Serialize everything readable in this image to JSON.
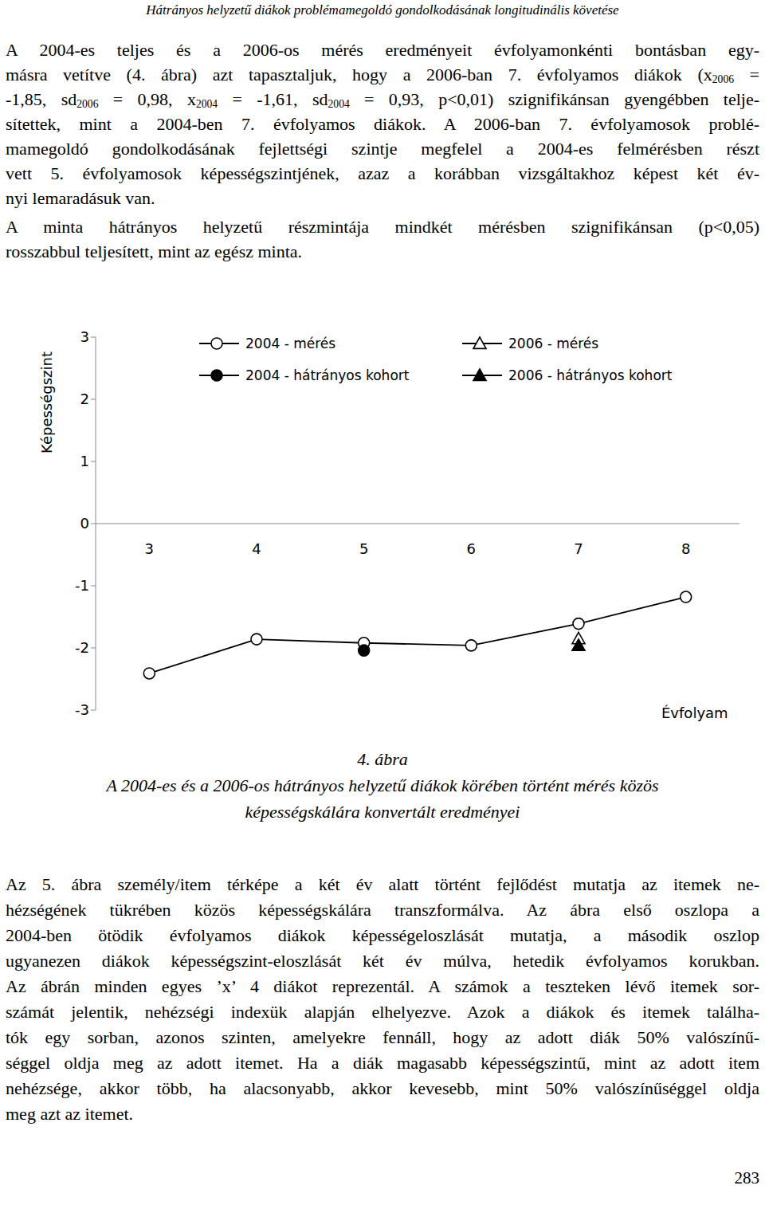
{
  "header": "Hátrányos helyzetű diákok problémamegoldó gondolkodásának longitudinális követése",
  "paragraphs_top": [
    {
      "lines": [
        [
          "A 2004-es teljes és a 2006-os mérés eredményeit évfolyamonkénti bontásban egy-"
        ],
        [
          "másra vetítve (4. ábra) azt tapasztaljuk, hogy a 2006-ban 7. évfolyamos diákok (x",
          {
            "sub": "2006"
          },
          " ="
        ],
        [
          "-1,85, sd",
          {
            "sub": "2006"
          },
          " = 0,98, x",
          {
            "sub": "2004"
          },
          " = -1,61, sd",
          {
            "sub": "2004"
          },
          " = 0,93, p<0,01) szignifikánsan gyengébben telje-"
        ],
        [
          "sítettek, mint a 2004-ben 7. évfolyamos diákok. A 2006-ban 7. évfolyamosok problé-"
        ],
        [
          "mamegoldó gondolkodásának fejlettségi szintje megfelel a 2004-es felmérésben részt"
        ],
        [
          "vett 5. évfolyamosok képességszintjének, azaz a korábban vizsgáltakhoz képest két év-"
        ],
        [
          "nyi lemaradásuk van."
        ]
      ]
    },
    {
      "lines": [
        [
          "A minta hátrányos helyzetű részmintája mindkét mérésben szignifikánsan (p<0,05)"
        ],
        [
          "rosszabbul teljesített, mint az egész minta."
        ]
      ]
    }
  ],
  "chart_data": {
    "type": "line",
    "y_label": "Képességszint",
    "x_label": "Évfolyam",
    "xlim": [
      2.5,
      8.5
    ],
    "xticks": [
      3,
      4,
      5,
      6,
      7,
      8
    ],
    "ylim": [
      -3,
      3
    ],
    "yticks": [
      -3,
      -2,
      -1,
      0,
      1,
      2,
      3
    ],
    "grid": false,
    "legend": "top",
    "series": [
      {
        "name": "2004 - mérés",
        "color": "#000000",
        "marker": "circle_open",
        "line_style": "solid",
        "x": [
          3,
          4,
          5,
          6,
          7,
          8
        ],
        "values": [
          -2.41,
          -1.86,
          -1.92,
          -1.96,
          -1.61,
          -1.18
        ]
      },
      {
        "name": "2006 - mérés",
        "color": "#000000",
        "marker": "triangle_open",
        "line_style": "none",
        "x": [
          7
        ],
        "values": [
          -1.85
        ]
      },
      {
        "name": "2004 - hátrányos kohort",
        "color": "#000000",
        "marker": "circle_filled",
        "line_style": "none",
        "x": [
          5
        ],
        "values": [
          -2.04
        ]
      },
      {
        "name": "2006 - hátrányos kohort",
        "color": "#000000",
        "marker": "triangle_filled",
        "line_style": "none",
        "x": [
          7
        ],
        "values": [
          -1.96
        ]
      }
    ]
  },
  "caption": {
    "label": "4. ábra",
    "lines": [
      "A 2004-es és a 2006-os hátrányos helyzetű diákok körében történt mérés közös",
      "képességskálára konvertált eredményei"
    ]
  },
  "paragraphs_bottom": [
    {
      "lines": [
        [
          "Az 5. ábra személy/item térképe a két év alatt történt fejlődést mutatja az itemek ne-"
        ],
        [
          "hézségének tükrében közös képességskálára transzformálva. Az ábra első oszlopa a"
        ],
        [
          "2004-ben ötödik évfolyamos diákok képességeloszlását mutatja, a második oszlop"
        ],
        [
          "ugyanezen diákok képességszint-eloszlását két év múlva, hetedik évfolyamos korukban."
        ],
        [
          "Az ábrán minden egyes ’x’ 4 diákot reprezentál. A számok a teszteken lévő itemek sor-"
        ],
        [
          "számát jelentik, nehézségi indexük alapján elhelyezve. Azok a diákok és itemek találha-"
        ],
        [
          "tók egy sorban, azonos szinten, amelyekre fennáll, hogy az adott diák 50% valószínű-"
        ],
        [
          "séggel oldja meg az adott itemet. Ha a diák magasabb képességszintű, mint az adott item"
        ],
        [
          "nehézsége, akkor több, ha alacsonyabb, akkor kevesebb, mint 50% valószínűséggel oldja"
        ],
        [
          "meg azt az itemet."
        ]
      ]
    }
  ],
  "page_number": "283"
}
